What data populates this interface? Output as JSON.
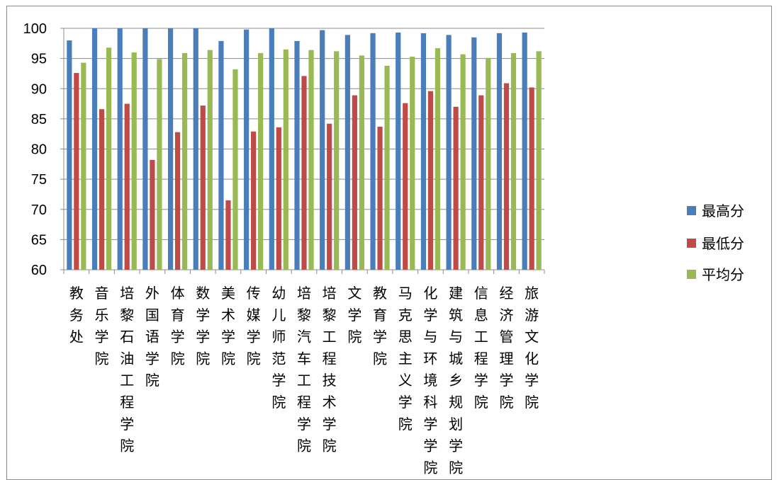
{
  "chart_data": {
    "type": "bar",
    "categories": [
      "教务处",
      "音乐学院",
      "培黎石油工程学院",
      "外国语学院",
      "体育学院",
      "数学学院",
      "美术学院",
      "传媒学院",
      "幼儿师范学院",
      "培黎汽车工程学院",
      "培黎工程技术学院",
      "文学院",
      "教育学院",
      "马克思主义学院",
      "化学与环境科学学院",
      "建筑与城乡规划学院",
      "信息工程学院",
      "经济管理学院",
      "旅游文化学院"
    ],
    "series": [
      {
        "name": "最高分",
        "color": "#4a7ebb",
        "values": [
          98.0,
          100,
          100,
          100,
          100,
          100,
          97.9,
          99.8,
          100,
          97.9,
          99.7,
          98.9,
          99.2,
          99.3,
          99.2,
          98.9,
          98.5,
          99.2,
          99.3
        ]
      },
      {
        "name": "最低分",
        "color": "#be4b48",
        "values": [
          92.6,
          86.6,
          87.5,
          78.2,
          82.8,
          87.2,
          71.5,
          82.9,
          83.6,
          92.1,
          84.2,
          88.9,
          83.7,
          87.6,
          89.6,
          87.0,
          88.9,
          90.9,
          90.2
        ]
      },
      {
        "name": "平均分",
        "color": "#98b954",
        "values": [
          94.3,
          96.8,
          96.0,
          94.9,
          95.9,
          96.4,
          93.2,
          95.9,
          96.5,
          96.4,
          96.2,
          95.5,
          93.8,
          95.3,
          96.7,
          95.7,
          95.1,
          95.9,
          96.2
        ]
      }
    ],
    "ylim": [
      60,
      100
    ],
    "yticks": [
      "60",
      "65",
      "70",
      "75",
      "80",
      "85",
      "90",
      "95",
      "100"
    ],
    "grid": true,
    "legend_position": "right"
  }
}
